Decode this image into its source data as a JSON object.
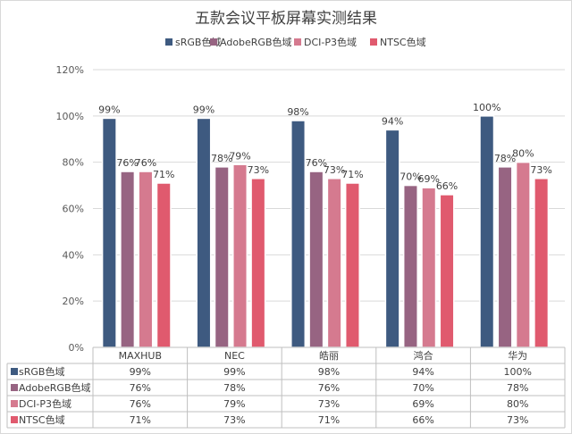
{
  "chart_data": {
    "type": "bar",
    "title": "五款会议平板屏幕实测结果",
    "categories": [
      "MAXHUB",
      "NEC",
      "皓丽",
      "鸿合",
      "华为"
    ],
    "series": [
      {
        "name": "sRGB色域",
        "values": [
          99,
          99,
          98,
          94,
          100
        ],
        "labels": [
          "99%",
          "99%",
          "98%",
          "94%",
          "100%"
        ],
        "color": "#3e5a80"
      },
      {
        "name": "AdobeRGB色域",
        "values": [
          76,
          78,
          76,
          70,
          78
        ],
        "labels": [
          "76%",
          "78%",
          "76%",
          "70%",
          "78%"
        ],
        "color": "#976482"
      },
      {
        "name": "DCI-P3色域",
        "values": [
          76,
          79,
          73,
          69,
          80
        ],
        "labels": [
          "76%",
          "79%",
          "73%",
          "69%",
          "80%"
        ],
        "color": "#d57a8f"
      },
      {
        "name": "NTSC色域",
        "values": [
          71,
          73,
          71,
          66,
          73
        ],
        "labels": [
          "71%",
          "73%",
          "71%",
          "66%",
          "73%"
        ],
        "color": "#e05a6e"
      }
    ],
    "y_ticks": [
      "0%",
      "20%",
      "40%",
      "60%",
      "80%",
      "100%",
      "120%"
    ],
    "ylim": [
      0,
      120
    ],
    "grid": true,
    "legend_position": "top",
    "data_table": true,
    "xlabel": "",
    "ylabel": ""
  }
}
